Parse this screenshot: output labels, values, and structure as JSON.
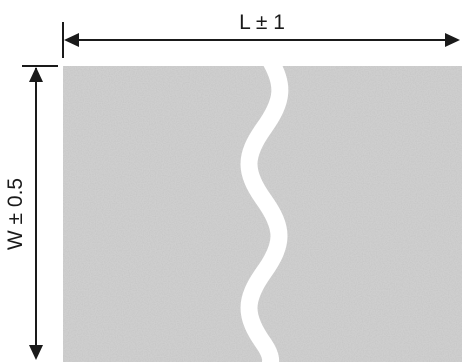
{
  "diagram": {
    "length_label": "L ± 1",
    "width_label": "W ± 0.5",
    "colors": {
      "line": "#1a1a1a",
      "material_base": "#cfcfcf",
      "break_gap": "#ffffff"
    }
  }
}
